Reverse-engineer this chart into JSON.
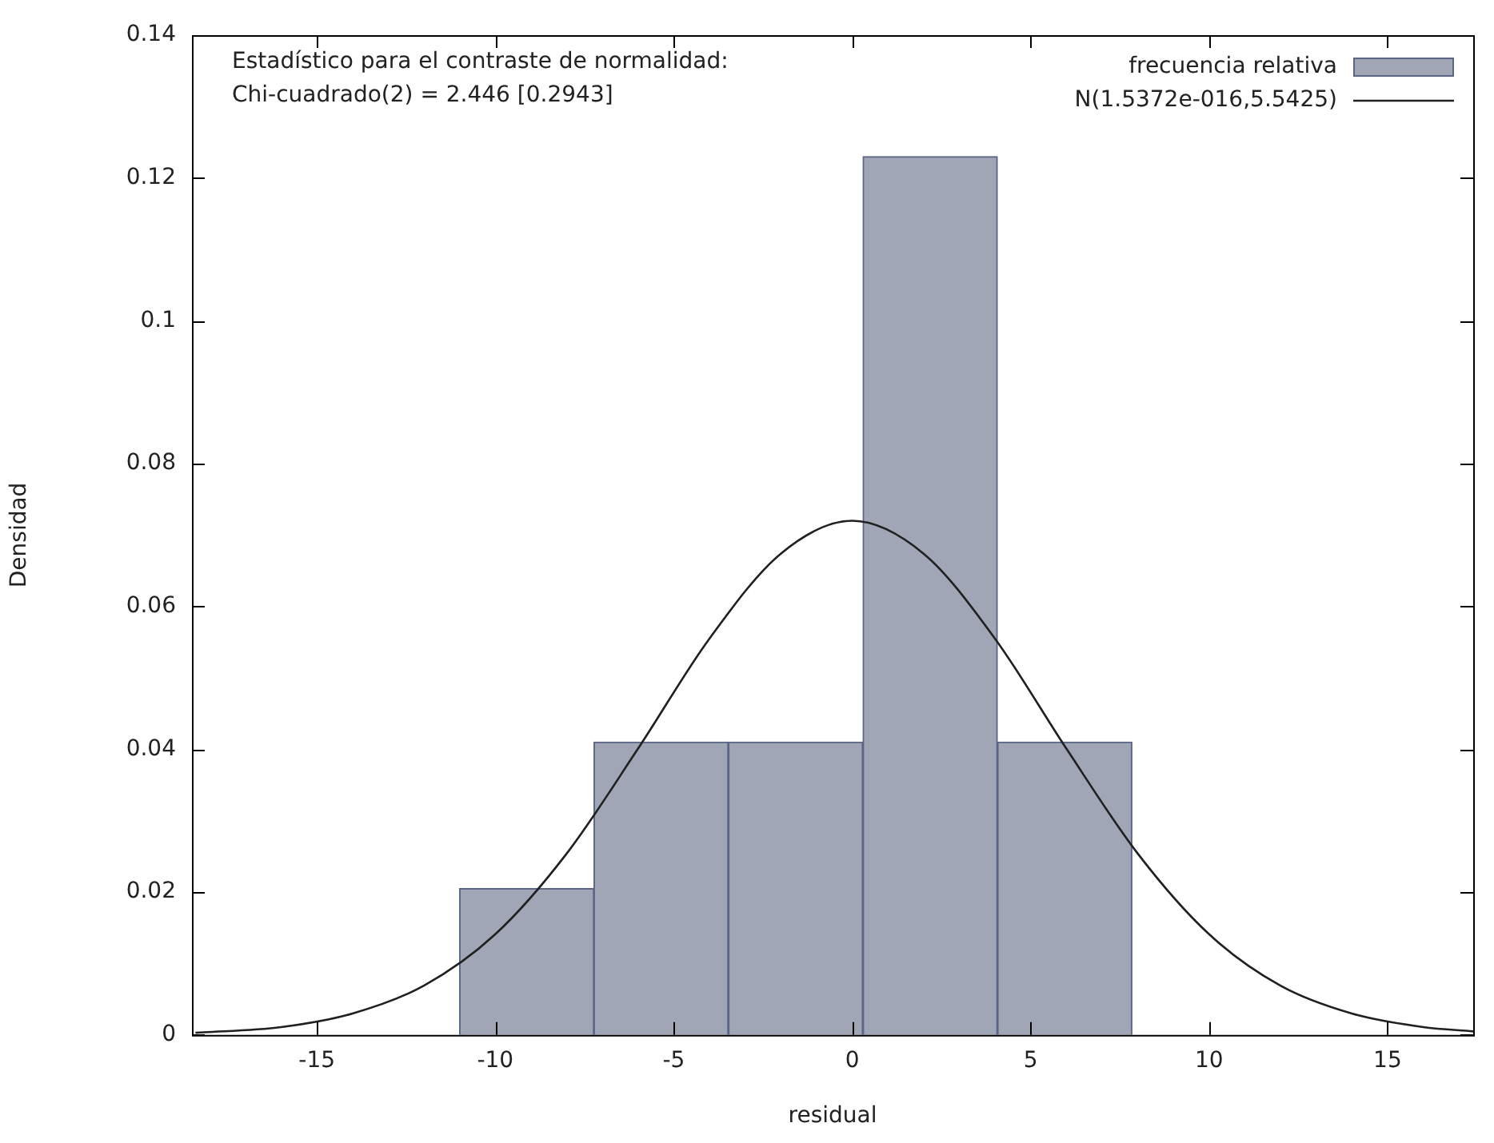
{
  "chart_data": {
    "type": "histogram",
    "xlabel": "residual",
    "ylabel": "Densidad",
    "annotations": [
      "Estadístico para el contraste de normalidad:",
      "Chi-cuadrado(2) = 2.446 [0.2943]"
    ],
    "bins": [
      -11.0,
      -7.24,
      -3.47,
      0.3,
      4.07,
      7.84
    ],
    "series": [
      {
        "name": "frecuencia relativa",
        "color": "#a0a6b6",
        "values": [
          0.0205,
          0.041,
          0.041,
          0.123,
          0.041
        ]
      },
      {
        "type": "line",
        "name": "N(1.5372e-016,5.5425)",
        "color": "#202020",
        "x": [
          -18.4,
          -16,
          -14,
          -12,
          -10,
          -8,
          -6,
          -4,
          -2,
          0,
          2,
          4,
          6,
          8,
          10,
          12,
          14,
          16,
          17.4
        ],
        "values": [
          0.0003,
          0.0011,
          0.003,
          0.0069,
          0.0141,
          0.0254,
          0.0401,
          0.0555,
          0.0674,
          0.072,
          0.0674,
          0.0555,
          0.0401,
          0.0254,
          0.0141,
          0.0069,
          0.003,
          0.0011,
          0.0005
        ]
      }
    ],
    "xlim": [
      -18.5,
      17.4
    ],
    "xticks": [
      -15,
      -10,
      -5,
      0,
      5,
      10,
      15
    ],
    "ylim": [
      0,
      0.14
    ],
    "yticks": [
      0,
      0.02,
      0.04,
      0.06,
      0.08,
      0.1,
      0.12,
      0.14
    ],
    "grid": false,
    "legend": "top right",
    "marker": "none",
    "line_style": "solid"
  }
}
